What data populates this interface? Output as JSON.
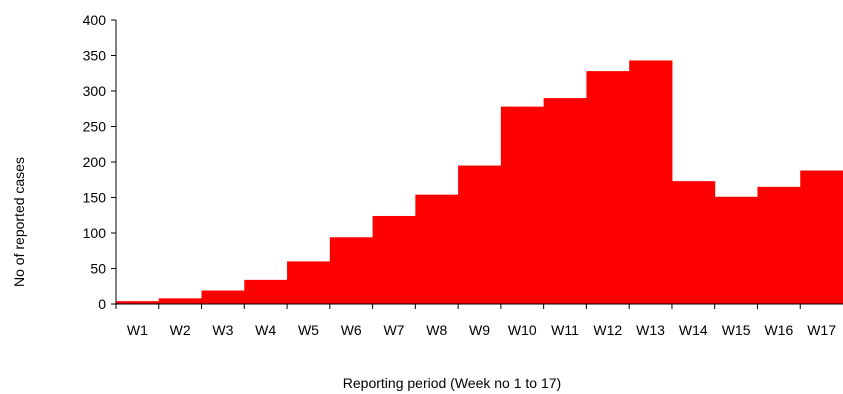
{
  "chart_data": {
    "type": "bar",
    "categories": [
      "W1",
      "W2",
      "W3",
      "W4",
      "W5",
      "W6",
      "W7",
      "W8",
      "W9",
      "W10",
      "W11",
      "W12",
      "W13",
      "W14",
      "W15",
      "W16",
      "W17"
    ],
    "values": [
      4,
      8,
      19,
      34,
      60,
      94,
      124,
      154,
      195,
      278,
      290,
      328,
      343,
      173,
      151,
      165,
      188
    ],
    "title": "",
    "xlabel": "Reporting period (Week no 1 to 17)",
    "ylabel": "No of reported cases",
    "ylim": [
      0,
      400
    ],
    "yticks": [
      "0",
      "50",
      "100",
      "150",
      "200",
      "250",
      "300",
      "350",
      "400"
    ],
    "grid": false,
    "bar_color": "#ff0000"
  }
}
